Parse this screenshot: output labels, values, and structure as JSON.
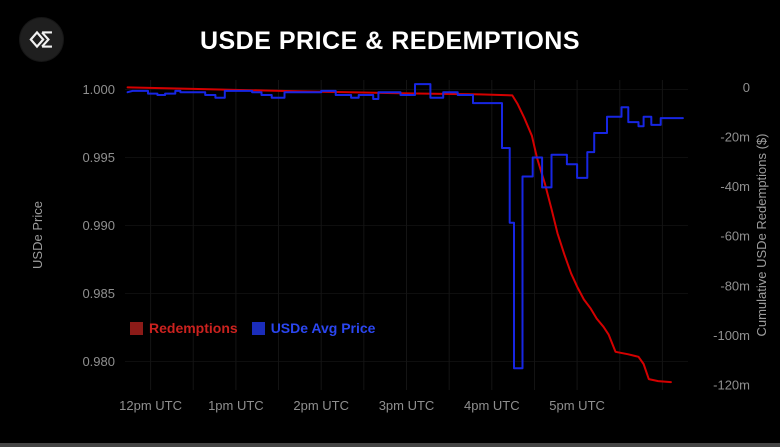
{
  "app": {
    "logo_icon": "ethena-sigma-icon"
  },
  "header": {
    "title": "USDE PRICE & REDEMPTIONS"
  },
  "legend": [
    {
      "label": "Redemptions",
      "text_color": "#cb221f",
      "swatch_color": "#8c1b18"
    },
    {
      "label": "USDe Avg Price",
      "text_color": "#2b46f0",
      "swatch_color": "#1b2dbb"
    }
  ],
  "chart_data": {
    "type": "line",
    "title": "USDE PRICE & REDEMPTIONS",
    "grid": {
      "vertical_step_hours": 0.5,
      "v_color": "#141414",
      "h_color": "#0e0e0e"
    },
    "x_axis": {
      "label": "",
      "unit": "UTC time",
      "domain": [
        11.7,
        18.3
      ],
      "ticks": [
        {
          "t": 12,
          "label": "12pm UTC"
        },
        {
          "t": 13,
          "label": "1pm UTC"
        },
        {
          "t": 14,
          "label": "2pm UTC"
        },
        {
          "t": 15,
          "label": "3pm UTC"
        },
        {
          "t": 16,
          "label": "4pm UTC"
        },
        {
          "t": 17,
          "label": "5pm UTC"
        }
      ]
    },
    "left_axis": {
      "label": "USDe Price",
      "domain": [
        0.9779,
        1.0007
      ],
      "ticks": [
        {
          "v": 1.0,
          "label": "1.000"
        },
        {
          "v": 0.995,
          "label": "0.995"
        },
        {
          "v": 0.99,
          "label": "0.990"
        },
        {
          "v": 0.985,
          "label": "0.985"
        },
        {
          "v": 0.98,
          "label": "0.980"
        }
      ]
    },
    "right_axis": {
      "label": "Cumulative USDe Redemptions ($)",
      "domain": [
        -122,
        3
      ],
      "ticks": [
        {
          "v": 0,
          "label": "0"
        },
        {
          "v": -20,
          "label": "-20m"
        },
        {
          "v": -40,
          "label": "-40m"
        },
        {
          "v": -60,
          "label": "-60m"
        },
        {
          "v": -80,
          "label": "-80m"
        },
        {
          "v": -100,
          "label": "-100m"
        },
        {
          "v": -120,
          "label": "-120m"
        }
      ]
    },
    "series": [
      {
        "name": "Redemptions",
        "axis": "right",
        "unit": "millions USD",
        "color": "#d40000",
        "points": [
          [
            11.73,
            0
          ],
          [
            12.5,
            -0.6
          ],
          [
            13.77,
            -1.6
          ],
          [
            15.0,
            -2.4
          ],
          [
            15.86,
            -2.8
          ],
          [
            16.24,
            -3.2
          ],
          [
            16.3,
            -6.5
          ],
          [
            16.38,
            -12.2
          ],
          [
            16.47,
            -19.5
          ],
          [
            16.53,
            -28.4
          ],
          [
            16.62,
            -38.5
          ],
          [
            16.7,
            -49
          ],
          [
            16.77,
            -58.8
          ],
          [
            16.85,
            -67.3
          ],
          [
            16.93,
            -75
          ],
          [
            17.0,
            -80.3
          ],
          [
            17.08,
            -85.5
          ],
          [
            17.16,
            -89.2
          ],
          [
            17.23,
            -93.2
          ],
          [
            17.31,
            -96.5
          ],
          [
            17.37,
            -99.7
          ],
          [
            17.45,
            -106.6
          ],
          [
            17.6,
            -107.6
          ],
          [
            17.72,
            -108.6
          ],
          [
            17.78,
            -111.5
          ],
          [
            17.84,
            -117.6
          ],
          [
            17.95,
            -118.4
          ],
          [
            18.1,
            -118.8
          ]
        ]
      },
      {
        "name": "USDe Avg Price",
        "axis": "left",
        "unit": "USD",
        "color": "#1726e3",
        "points": [
          [
            11.73,
            0.9998
          ],
          [
            11.79,
            0.9999
          ],
          [
            11.97,
            0.9999
          ],
          [
            11.97,
            0.9997
          ],
          [
            12.08,
            0.9997
          ],
          [
            12.08,
            0.9996
          ],
          [
            12.17,
            0.9996
          ],
          [
            12.17,
            0.9997
          ],
          [
            12.29,
            0.9997
          ],
          [
            12.29,
            0.9999
          ],
          [
            12.35,
            0.9999
          ],
          [
            12.35,
            0.9998
          ],
          [
            12.64,
            0.9998
          ],
          [
            12.64,
            0.9996
          ],
          [
            12.76,
            0.9996
          ],
          [
            12.76,
            0.9994
          ],
          [
            12.87,
            0.9994
          ],
          [
            12.87,
            0.9999
          ],
          [
            13.19,
            0.9999
          ],
          [
            13.19,
            0.9998
          ],
          [
            13.3,
            0.9998
          ],
          [
            13.3,
            0.9996
          ],
          [
            13.42,
            0.9996
          ],
          [
            13.42,
            0.9994
          ],
          [
            13.57,
            0.9994
          ],
          [
            13.57,
            0.9998
          ],
          [
            14.0,
            0.9998
          ],
          [
            14.0,
            0.9999
          ],
          [
            14.17,
            0.9999
          ],
          [
            14.17,
            0.9996
          ],
          [
            14.35,
            0.9996
          ],
          [
            14.35,
            0.9994
          ],
          [
            14.44,
            0.9994
          ],
          [
            14.44,
            0.9996
          ],
          [
            14.61,
            0.9996
          ],
          [
            14.61,
            0.9993
          ],
          [
            14.67,
            0.9993
          ],
          [
            14.67,
            0.9998
          ],
          [
            14.93,
            0.9998
          ],
          [
            14.93,
            0.9996
          ],
          [
            15.1,
            0.9996
          ],
          [
            15.1,
            1.0004
          ],
          [
            15.28,
            1.0004
          ],
          [
            15.28,
            0.9994
          ],
          [
            15.43,
            0.9994
          ],
          [
            15.43,
            0.9998
          ],
          [
            15.6,
            0.9998
          ],
          [
            15.6,
            0.9996
          ],
          [
            15.78,
            0.9996
          ],
          [
            15.78,
            0.999
          ],
          [
            16.12,
            0.999
          ],
          [
            16.12,
            0.9957
          ],
          [
            16.21,
            0.9957
          ],
          [
            16.21,
            0.9902
          ],
          [
            16.26,
            0.9902
          ],
          [
            16.26,
            0.9795
          ],
          [
            16.36,
            0.9795
          ],
          [
            16.36,
            0.9936
          ],
          [
            16.48,
            0.9936
          ],
          [
            16.48,
            0.995
          ],
          [
            16.59,
            0.995
          ],
          [
            16.59,
            0.9928
          ],
          [
            16.7,
            0.9928
          ],
          [
            16.7,
            0.9952
          ],
          [
            16.88,
            0.9952
          ],
          [
            16.88,
            0.9945
          ],
          [
            17.0,
            0.9945
          ],
          [
            17.0,
            0.9935
          ],
          [
            17.12,
            0.9935
          ],
          [
            17.12,
            0.9954
          ],
          [
            17.2,
            0.9954
          ],
          [
            17.2,
            0.9968
          ],
          [
            17.35,
            0.9968
          ],
          [
            17.35,
            0.998
          ],
          [
            17.52,
            0.998
          ],
          [
            17.52,
            0.9987
          ],
          [
            17.6,
            0.9987
          ],
          [
            17.6,
            0.9976
          ],
          [
            17.72,
            0.9976
          ],
          [
            17.72,
            0.9973
          ],
          [
            17.78,
            0.9973
          ],
          [
            17.78,
            0.998
          ],
          [
            17.87,
            0.998
          ],
          [
            17.87,
            0.9974
          ],
          [
            17.98,
            0.9974
          ],
          [
            17.98,
            0.9979
          ],
          [
            18.24,
            0.9979
          ]
        ]
      }
    ]
  }
}
